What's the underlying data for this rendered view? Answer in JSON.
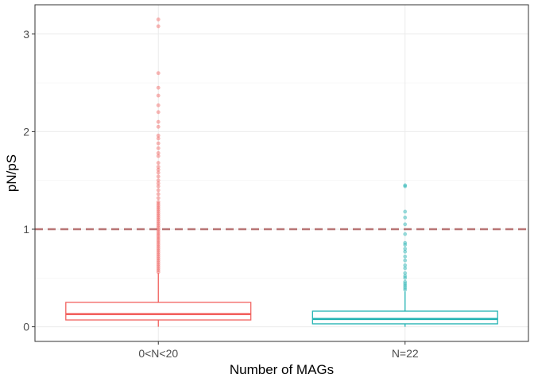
{
  "chart_data": {
    "type": "boxplot",
    "title": "",
    "xlabel": "Number of MAGs",
    "ylabel": "pN/pS",
    "ylim": [
      -0.15,
      3.3
    ],
    "yticks": [
      0,
      1,
      2,
      3
    ],
    "ytick_labels": [
      "0",
      "1",
      "2",
      "3"
    ],
    "grid": true,
    "reference_line": {
      "y": 1,
      "style": "dashed",
      "color": "#b87575"
    },
    "categories": [
      "0<N<20",
      "N=22"
    ],
    "series": [
      {
        "name": "0<N<20",
        "color": "#f2625f",
        "min": 0.0,
        "q1": 0.07,
        "median": 0.13,
        "q3": 0.25,
        "whisker_high": 0.55,
        "outliers": [
          0.56,
          0.58,
          0.6,
          0.62,
          0.64,
          0.66,
          0.68,
          0.7,
          0.72,
          0.74,
          0.76,
          0.78,
          0.8,
          0.82,
          0.84,
          0.86,
          0.88,
          0.9,
          0.92,
          0.94,
          0.96,
          0.98,
          1.0,
          1.02,
          1.04,
          1.06,
          1.08,
          1.1,
          1.12,
          1.14,
          1.16,
          1.18,
          1.2,
          1.22,
          1.24,
          1.26,
          1.28,
          1.32,
          1.36,
          1.4,
          1.44,
          1.47,
          1.5,
          1.54,
          1.58,
          1.61,
          1.64,
          1.68,
          1.75,
          1.78,
          1.83,
          1.88,
          1.93,
          1.96,
          2.05,
          2.1,
          2.2,
          2.27,
          2.37,
          2.45,
          2.6,
          3.08,
          3.15
        ]
      },
      {
        "name": "N=22",
        "color": "#22b3b3",
        "min": 0.0,
        "q1": 0.03,
        "median": 0.08,
        "q3": 0.16,
        "whisker_high": 0.36,
        "outliers": [
          0.38,
          0.4,
          0.42,
          0.44,
          0.46,
          0.5,
          0.52,
          0.55,
          0.6,
          0.63,
          0.68,
          0.72,
          0.77,
          0.8,
          0.84,
          0.86,
          0.95,
          1.05,
          1.12,
          1.18,
          1.44,
          1.45
        ]
      }
    ]
  }
}
